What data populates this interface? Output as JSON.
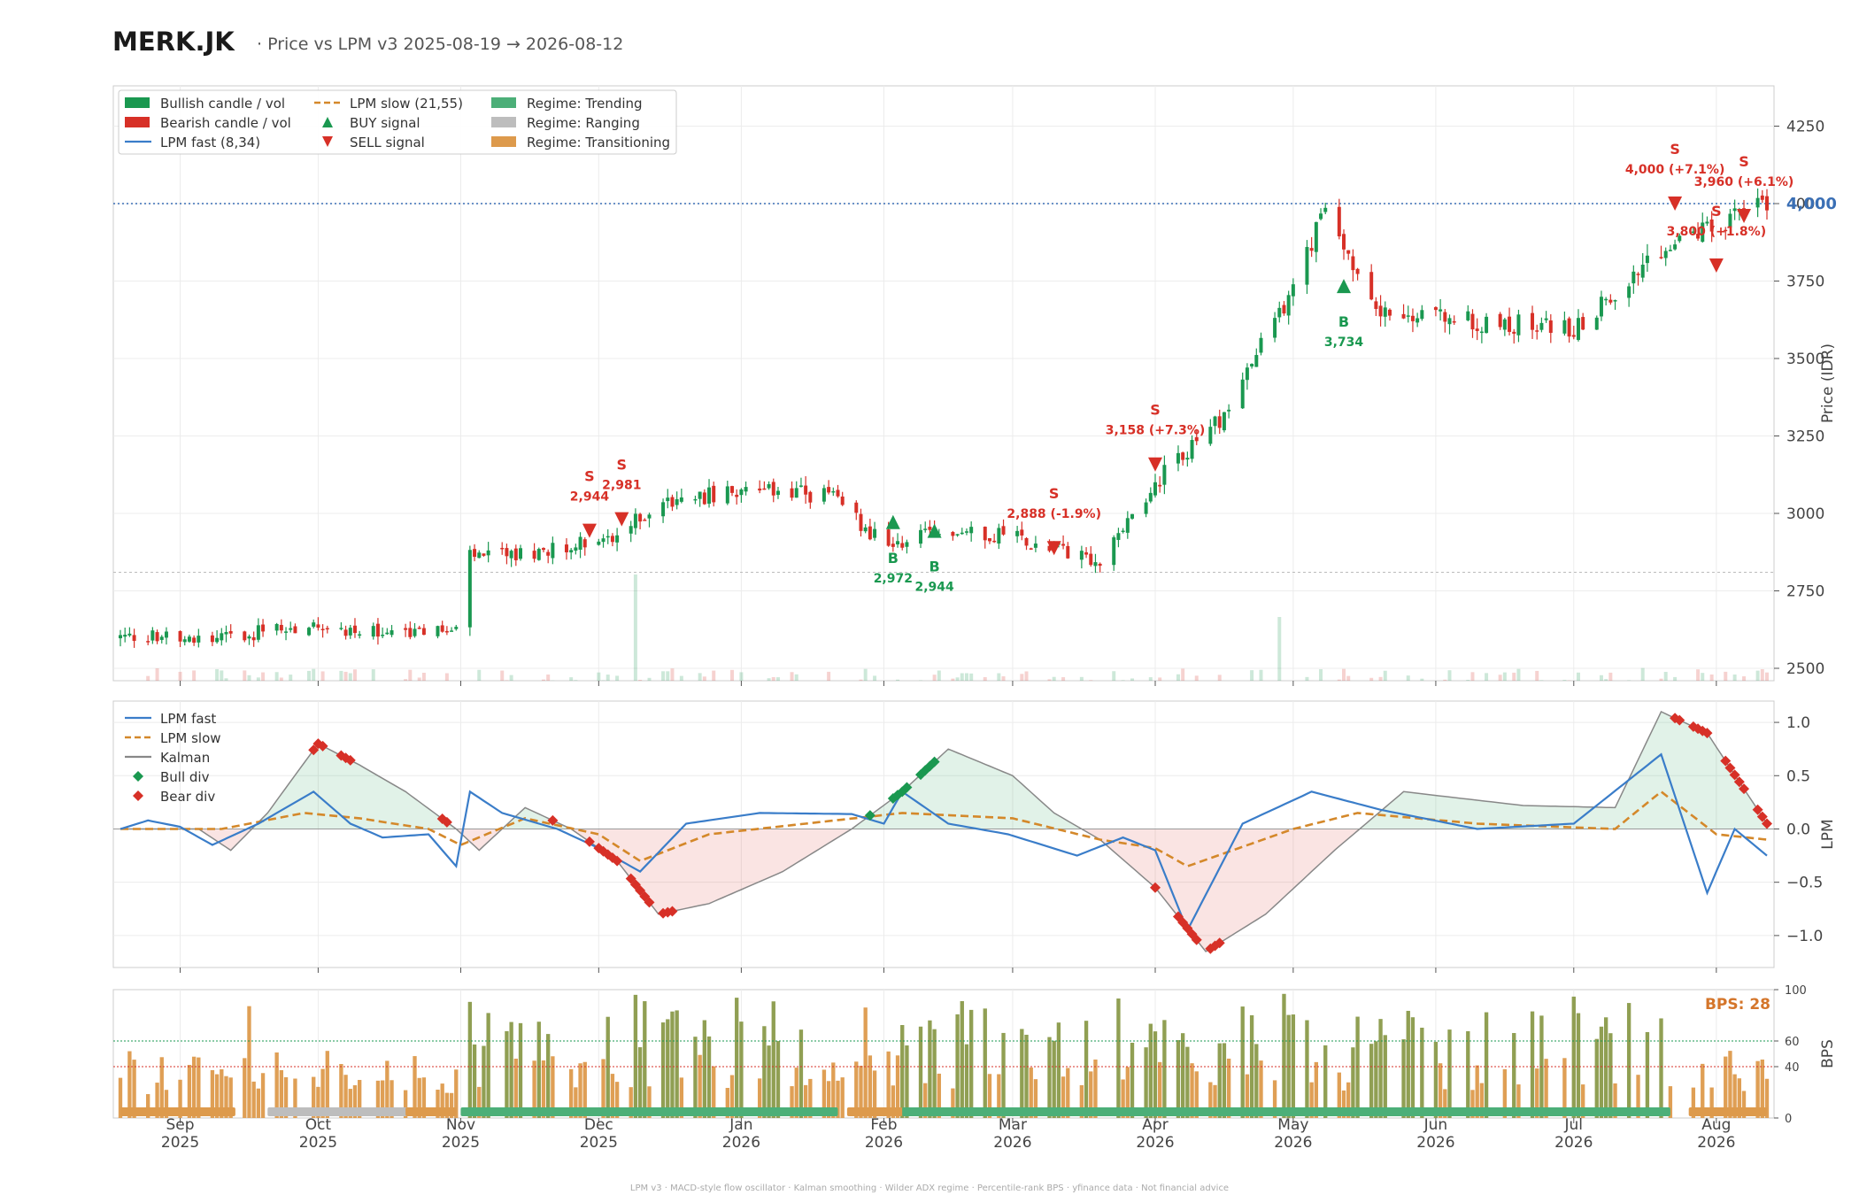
{
  "header": {
    "ticker": "MERK.JK",
    "subtitle": "·  Price vs LPM v3  2025-08-19 → 2026-08-12"
  },
  "footer": "LPM v3  ·  MACD-style flow oscillator  ·  Kalman smoothing  ·  Wilder ADX regime  ·  Percentile-rank BPS  ·  yfinance data  ·  Not financial advice",
  "colors": {
    "bull": "#1a9850",
    "bear": "#d73027",
    "fast": "#3a7dc9",
    "slow": "#d4882a",
    "kalman": "#888888",
    "trending": "#4caf78",
    "ranging": "#bdbdbd",
    "transitioning": "#dd9a4c"
  },
  "legends": {
    "price": [
      {
        "label": "Bullish candle / vol",
        "kind": "rect",
        "color": "#1a9850"
      },
      {
        "label": "Bearish candle / vol",
        "kind": "rect",
        "color": "#d73027"
      },
      {
        "label": "LPM fast (8,34)",
        "kind": "line",
        "color": "#3a7dc9"
      },
      {
        "label": "LPM slow (21,55)",
        "kind": "dash",
        "color": "#d4882a"
      },
      {
        "label": "BUY signal",
        "kind": "up",
        "color": "#1a9850"
      },
      {
        "label": "SELL signal",
        "kind": "down",
        "color": "#d73027"
      },
      {
        "label": "Regime: Trending",
        "kind": "rect",
        "color": "#4caf78"
      },
      {
        "label": "Regime: Ranging",
        "kind": "rect",
        "color": "#bdbdbd"
      },
      {
        "label": "Regime: Transitioning",
        "kind": "rect",
        "color": "#dd9a4c"
      }
    ],
    "lpm": [
      {
        "label": "LPM fast",
        "kind": "line",
        "color": "#3a7dc9"
      },
      {
        "label": "LPM slow",
        "kind": "dash",
        "color": "#d4882a"
      },
      {
        "label": "Kalman",
        "kind": "line",
        "color": "#888888"
      },
      {
        "label": "Bull div",
        "kind": "diamond",
        "color": "#1a9850"
      },
      {
        "label": "Bear div",
        "kind": "diamond",
        "color": "#d73027"
      }
    ]
  },
  "chart_data": [
    {
      "type": "candlestick",
      "panel": "price",
      "ylabel": "Price (IDR)",
      "ylim": [
        2460,
        4380
      ],
      "yticks": [
        2500,
        2750,
        3000,
        3250,
        3500,
        3750,
        4000,
        4250
      ],
      "last_price_label": "4,000",
      "last_price": 4000,
      "close_path": [
        [
          "2025-08-19",
          2600
        ],
        [
          "2025-09-15",
          2610
        ],
        [
          "2025-10-01",
          2640
        ],
        [
          "2025-10-15",
          2610
        ],
        [
          "2025-10-31",
          2620
        ],
        [
          "2025-11-03",
          2860
        ],
        [
          "2025-11-20",
          2880
        ],
        [
          "2025-12-05",
          2930
        ],
        [
          "2025-12-15",
          3040
        ],
        [
          "2026-01-01",
          3070
        ],
        [
          "2026-01-20",
          3060
        ],
        [
          "2026-02-01",
          2900
        ],
        [
          "2026-02-15",
          2940
        ],
        [
          "2026-03-01",
          2930
        ],
        [
          "2026-03-20",
          2840
        ],
        [
          "2026-04-01",
          3100
        ],
        [
          "2026-04-15",
          3300
        ],
        [
          "2026-04-30",
          3700
        ],
        [
          "2026-05-08",
          3980
        ],
        [
          "2026-05-20",
          3650
        ],
        [
          "2026-06-10",
          3620
        ],
        [
          "2026-07-01",
          3600
        ],
        [
          "2026-07-25",
          3900
        ],
        [
          "2026-08-12",
          4000
        ]
      ],
      "volume_spikes": [
        {
          "date": "2025-12-09",
          "rel": 1.0
        },
        {
          "date": "2025-11-02",
          "rel": 0.55
        },
        {
          "date": "2026-04-28",
          "rel": 0.6
        },
        {
          "date": "2026-08-01",
          "rel": 0.5
        }
      ],
      "signals": [
        {
          "type": "SELL",
          "date": "2025-11-29",
          "price": 2944,
          "letter": "S",
          "label": "2,944",
          "label_color": "#d73027"
        },
        {
          "type": "SELL",
          "date": "2025-12-06",
          "price": 2981,
          "letter": "S",
          "label": "2,981",
          "label_color": "#d73027"
        },
        {
          "type": "BUY",
          "date": "2026-02-03",
          "price": 2972,
          "letter": "B",
          "label": "2,972",
          "label_color": "#1a9850"
        },
        {
          "type": "BUY",
          "date": "2026-02-12",
          "price": 2944,
          "letter": "B",
          "label": "2,944",
          "label_color": "#1a9850"
        },
        {
          "type": "SELL",
          "date": "2026-03-10",
          "price": 2888,
          "letter": "S",
          "label": "2,888 (-1.9%)",
          "label_color": "#d73027"
        },
        {
          "type": "SELL",
          "date": "2026-04-01",
          "price": 3158,
          "letter": "S",
          "label": "3,158 (+7.3%)",
          "label_color": "#d73027"
        },
        {
          "type": "BUY",
          "date": "2026-05-12",
          "price": 3734,
          "letter": "B",
          "label": "3,734",
          "label_color": "#1a9850"
        },
        {
          "type": "SELL",
          "date": "2026-07-23",
          "price": 4000,
          "letter": "S",
          "label": "4,000 (+7.1%)",
          "label_color": "#d73027"
        },
        {
          "type": "SELL",
          "date": "2026-08-01",
          "price": 3800,
          "letter": "S",
          "label": "3,800 (+1.8%)",
          "label_color": "#d73027"
        },
        {
          "type": "SELL",
          "date": "2026-08-07",
          "price": 3960,
          "letter": "S",
          "label": "3,960 (+6.1%)",
          "label_color": "#d73027"
        }
      ]
    },
    {
      "type": "line",
      "panel": "lpm",
      "ylabel": "LPM",
      "ylim": [
        -1.3,
        1.2
      ],
      "yticks": [
        -1.0,
        -0.5,
        0.0,
        0.5,
        1.0
      ],
      "series": [
        {
          "name": "LPM fast",
          "values": [
            [
              "2025-08-19",
              0.0
            ],
            [
              "2025-08-25",
              0.08
            ],
            [
              "2025-09-01",
              0.02
            ],
            [
              "2025-09-08",
              -0.15
            ],
            [
              "2025-09-18",
              0.05
            ],
            [
              "2025-09-30",
              0.35
            ],
            [
              "2025-10-08",
              0.05
            ],
            [
              "2025-10-15",
              -0.08
            ],
            [
              "2025-10-25",
              -0.05
            ],
            [
              "2025-10-31",
              -0.35
            ],
            [
              "2025-11-03",
              0.35
            ],
            [
              "2025-11-10",
              0.15
            ],
            [
              "2025-11-22",
              0.0
            ],
            [
              "2025-12-01",
              -0.18
            ],
            [
              "2025-12-10",
              -0.4
            ],
            [
              "2025-12-20",
              0.05
            ],
            [
              "2026-01-05",
              0.15
            ],
            [
              "2026-01-25",
              0.14
            ],
            [
              "2026-02-01",
              0.05
            ],
            [
              "2026-02-05",
              0.35
            ],
            [
              "2026-02-15",
              0.05
            ],
            [
              "2026-02-28",
              -0.05
            ],
            [
              "2026-03-15",
              -0.25
            ],
            [
              "2026-03-25",
              -0.08
            ],
            [
              "2026-04-01",
              -0.2
            ],
            [
              "2026-04-08",
              -0.95
            ],
            [
              "2026-04-20",
              0.05
            ],
            [
              "2026-05-05",
              0.35
            ],
            [
              "2026-05-20",
              0.18
            ],
            [
              "2026-06-10",
              0.0
            ],
            [
              "2026-07-01",
              0.05
            ],
            [
              "2026-07-20",
              0.7
            ],
            [
              "2026-07-30",
              -0.6
            ],
            [
              "2026-08-05",
              0.0
            ],
            [
              "2026-08-12",
              -0.25
            ]
          ]
        },
        {
          "name": "LPM slow",
          "values": [
            [
              "2025-08-19",
              0.0
            ],
            [
              "2025-09-10",
              0.0
            ],
            [
              "2025-09-28",
              0.15
            ],
            [
              "2025-10-10",
              0.1
            ],
            [
              "2025-10-25",
              0.0
            ],
            [
              "2025-11-01",
              -0.15
            ],
            [
              "2025-11-15",
              0.1
            ],
            [
              "2025-12-01",
              -0.05
            ],
            [
              "2025-12-10",
              -0.3
            ],
            [
              "2025-12-25",
              -0.05
            ],
            [
              "2026-01-15",
              0.05
            ],
            [
              "2026-02-05",
              0.15
            ],
            [
              "2026-03-01",
              0.1
            ],
            [
              "2026-03-20",
              -0.1
            ],
            [
              "2026-04-01",
              -0.18
            ],
            [
              "2026-04-08",
              -0.35
            ],
            [
              "2026-05-01",
              0.0
            ],
            [
              "2026-05-15",
              0.15
            ],
            [
              "2026-06-10",
              0.05
            ],
            [
              "2026-07-10",
              0.0
            ],
            [
              "2026-07-20",
              0.35
            ],
            [
              "2026-08-01",
              -0.05
            ],
            [
              "2026-08-12",
              -0.1
            ]
          ]
        },
        {
          "name": "Kalman",
          "values": [
            [
              "2025-08-19",
              0.0
            ],
            [
              "2025-09-05",
              0.0
            ],
            [
              "2025-09-12",
              -0.2
            ],
            [
              "2025-09-20",
              0.15
            ],
            [
              "2025-10-01",
              0.8
            ],
            [
              "2025-10-10",
              0.6
            ],
            [
              "2025-10-20",
              0.35
            ],
            [
              "2025-10-31",
              0.0
            ],
            [
              "2025-11-05",
              -0.2
            ],
            [
              "2025-11-15",
              0.2
            ],
            [
              "2025-11-25",
              0.0
            ],
            [
              "2025-12-05",
              -0.3
            ],
            [
              "2025-12-14",
              -0.8
            ],
            [
              "2025-12-25",
              -0.7
            ],
            [
              "2026-01-10",
              -0.4
            ],
            [
              "2026-01-25",
              0.0
            ],
            [
              "2026-02-05",
              0.35
            ],
            [
              "2026-02-15",
              0.75
            ],
            [
              "2026-03-01",
              0.5
            ],
            [
              "2026-03-10",
              0.15
            ],
            [
              "2026-03-20",
              -0.1
            ],
            [
              "2026-04-01",
              -0.55
            ],
            [
              "2026-04-12",
              -1.15
            ],
            [
              "2026-04-25",
              -0.8
            ],
            [
              "2026-05-10",
              -0.2
            ],
            [
              "2026-05-25",
              0.35
            ],
            [
              "2026-06-20",
              0.22
            ],
            [
              "2026-07-10",
              0.2
            ],
            [
              "2026-07-20",
              1.1
            ],
            [
              "2026-07-30",
              0.9
            ],
            [
              "2026-08-12",
              0.05
            ]
          ]
        }
      ],
      "bull_div_dates": [
        "2026-01-29",
        "2026-02-03",
        "2026-02-04",
        "2026-02-05",
        "2026-02-06",
        "2026-02-09",
        "2026-02-10",
        "2026-02-11",
        "2026-02-12"
      ],
      "bear_div_dates": [
        "2025-09-30",
        "2025-10-01",
        "2025-10-02",
        "2025-10-06",
        "2025-10-07",
        "2025-10-08",
        "2025-10-28",
        "2025-10-29",
        "2025-11-21",
        "2025-11-29",
        "2025-12-01",
        "2025-12-02",
        "2025-12-03",
        "2025-12-04",
        "2025-12-05",
        "2025-12-08",
        "2025-12-09",
        "2025-12-10",
        "2025-12-11",
        "2025-12-12",
        "2025-12-15",
        "2025-12-16",
        "2025-12-17",
        "2026-04-01",
        "2026-04-06",
        "2026-04-07",
        "2026-04-08",
        "2026-04-09",
        "2026-04-10",
        "2026-04-13",
        "2026-04-14",
        "2026-04-15",
        "2026-07-23",
        "2026-07-24",
        "2026-07-27",
        "2026-07-28",
        "2026-07-29",
        "2026-07-30",
        "2026-08-03",
        "2026-08-04",
        "2026-08-05",
        "2026-08-06",
        "2026-08-07",
        "2026-08-10",
        "2026-08-11",
        "2026-08-12"
      ]
    },
    {
      "type": "bar",
      "panel": "bps",
      "ylabel": "BPS",
      "ylim": [
        0,
        100
      ],
      "yticks": [
        0,
        40,
        60,
        100
      ],
      "thresholds": [
        40,
        60
      ],
      "badge": "BPS: 28",
      "regimes": [
        {
          "from": "2025-08-19",
          "to": "2025-09-13",
          "regime": "Transitioning"
        },
        {
          "from": "2025-09-20",
          "to": "2025-10-24",
          "regime": "Ranging"
        },
        {
          "from": "2025-10-20",
          "to": "2025-10-31",
          "regime": "Transitioning"
        },
        {
          "from": "2025-11-01",
          "to": "2026-01-22",
          "regime": "Trending"
        },
        {
          "from": "2026-01-24",
          "to": "2026-02-05",
          "regime": "Transitioning"
        },
        {
          "from": "2026-02-05",
          "to": "2026-07-22",
          "regime": "Trending"
        },
        {
          "from": "2026-07-26",
          "to": "2026-08-12",
          "regime": "Transitioning"
        }
      ]
    }
  ],
  "x_axis": {
    "domain": [
      "2025-08-19",
      "2026-08-12"
    ],
    "ticks": [
      {
        "date": "2025-09-01",
        "month": "Sep",
        "year": "2025"
      },
      {
        "date": "2025-10-01",
        "month": "Oct",
        "year": "2025"
      },
      {
        "date": "2025-11-01",
        "month": "Nov",
        "year": "2025"
      },
      {
        "date": "2025-12-01",
        "month": "Dec",
        "year": "2025"
      },
      {
        "date": "2026-01-01",
        "month": "Jan",
        "year": "2026"
      },
      {
        "date": "2026-02-01",
        "month": "Feb",
        "year": "2026"
      },
      {
        "date": "2026-03-01",
        "month": "Mar",
        "year": "2026"
      },
      {
        "date": "2026-04-01",
        "month": "Apr",
        "year": "2026"
      },
      {
        "date": "2026-05-01",
        "month": "May",
        "year": "2026"
      },
      {
        "date": "2026-06-01",
        "month": "Jun",
        "year": "2026"
      },
      {
        "date": "2026-07-01",
        "month": "Jul",
        "year": "2026"
      },
      {
        "date": "2026-08-01",
        "month": "Aug",
        "year": "2026"
      }
    ]
  }
}
